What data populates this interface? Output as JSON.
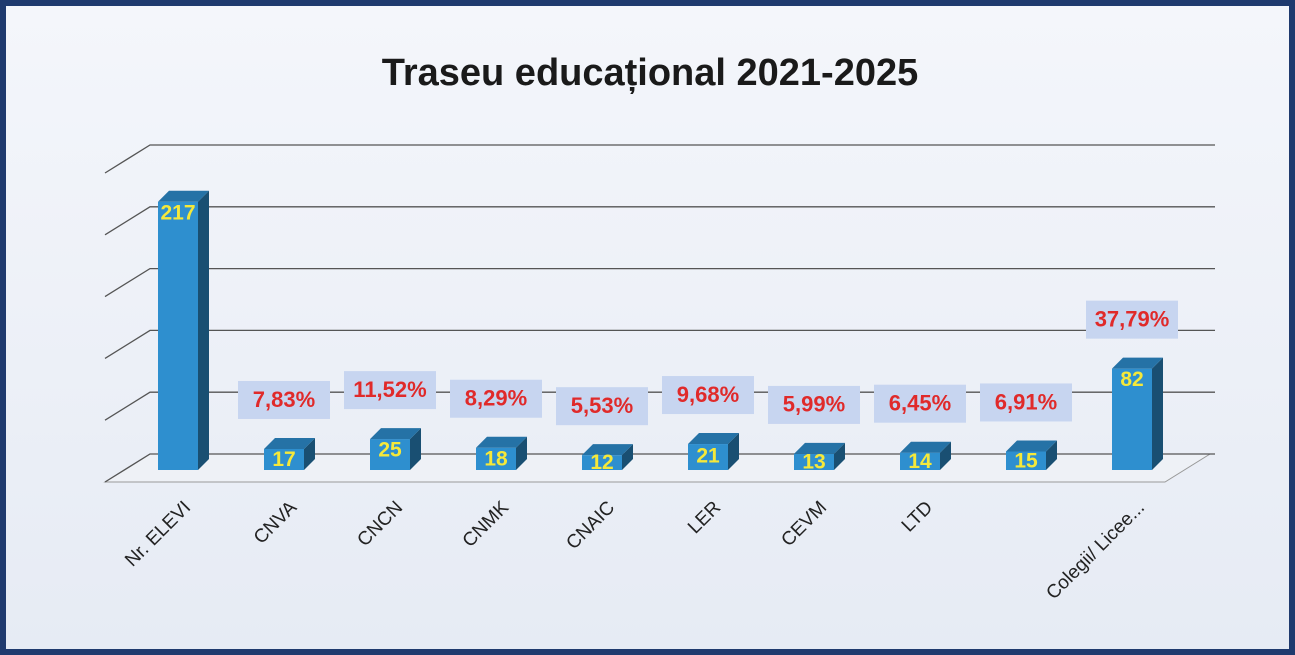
{
  "chart_data": {
    "type": "bar3d",
    "title": "Traseu educațional 2021-2025",
    "categories": [
      "Nr. ELEVI",
      "CNVA",
      "CNCN",
      "CNMK",
      "CNAIC",
      "LER",
      "CEVM",
      "LTD",
      null,
      "Colegii/ Licee..."
    ],
    "values": [
      217,
      17,
      25,
      18,
      12,
      21,
      13,
      14,
      15,
      82
    ],
    "percent_labels": [
      null,
      "7,83%",
      "11,52%",
      "8,29%",
      "5,53%",
      "9,68%",
      "5,99%",
      "6,45%",
      "6,91%",
      "37,79%"
    ],
    "color": "#2e8fcf",
    "ylim": [
      0,
      250
    ],
    "yticks": [
      0,
      50,
      100,
      150,
      200,
      250
    ],
    "grid": true
  }
}
